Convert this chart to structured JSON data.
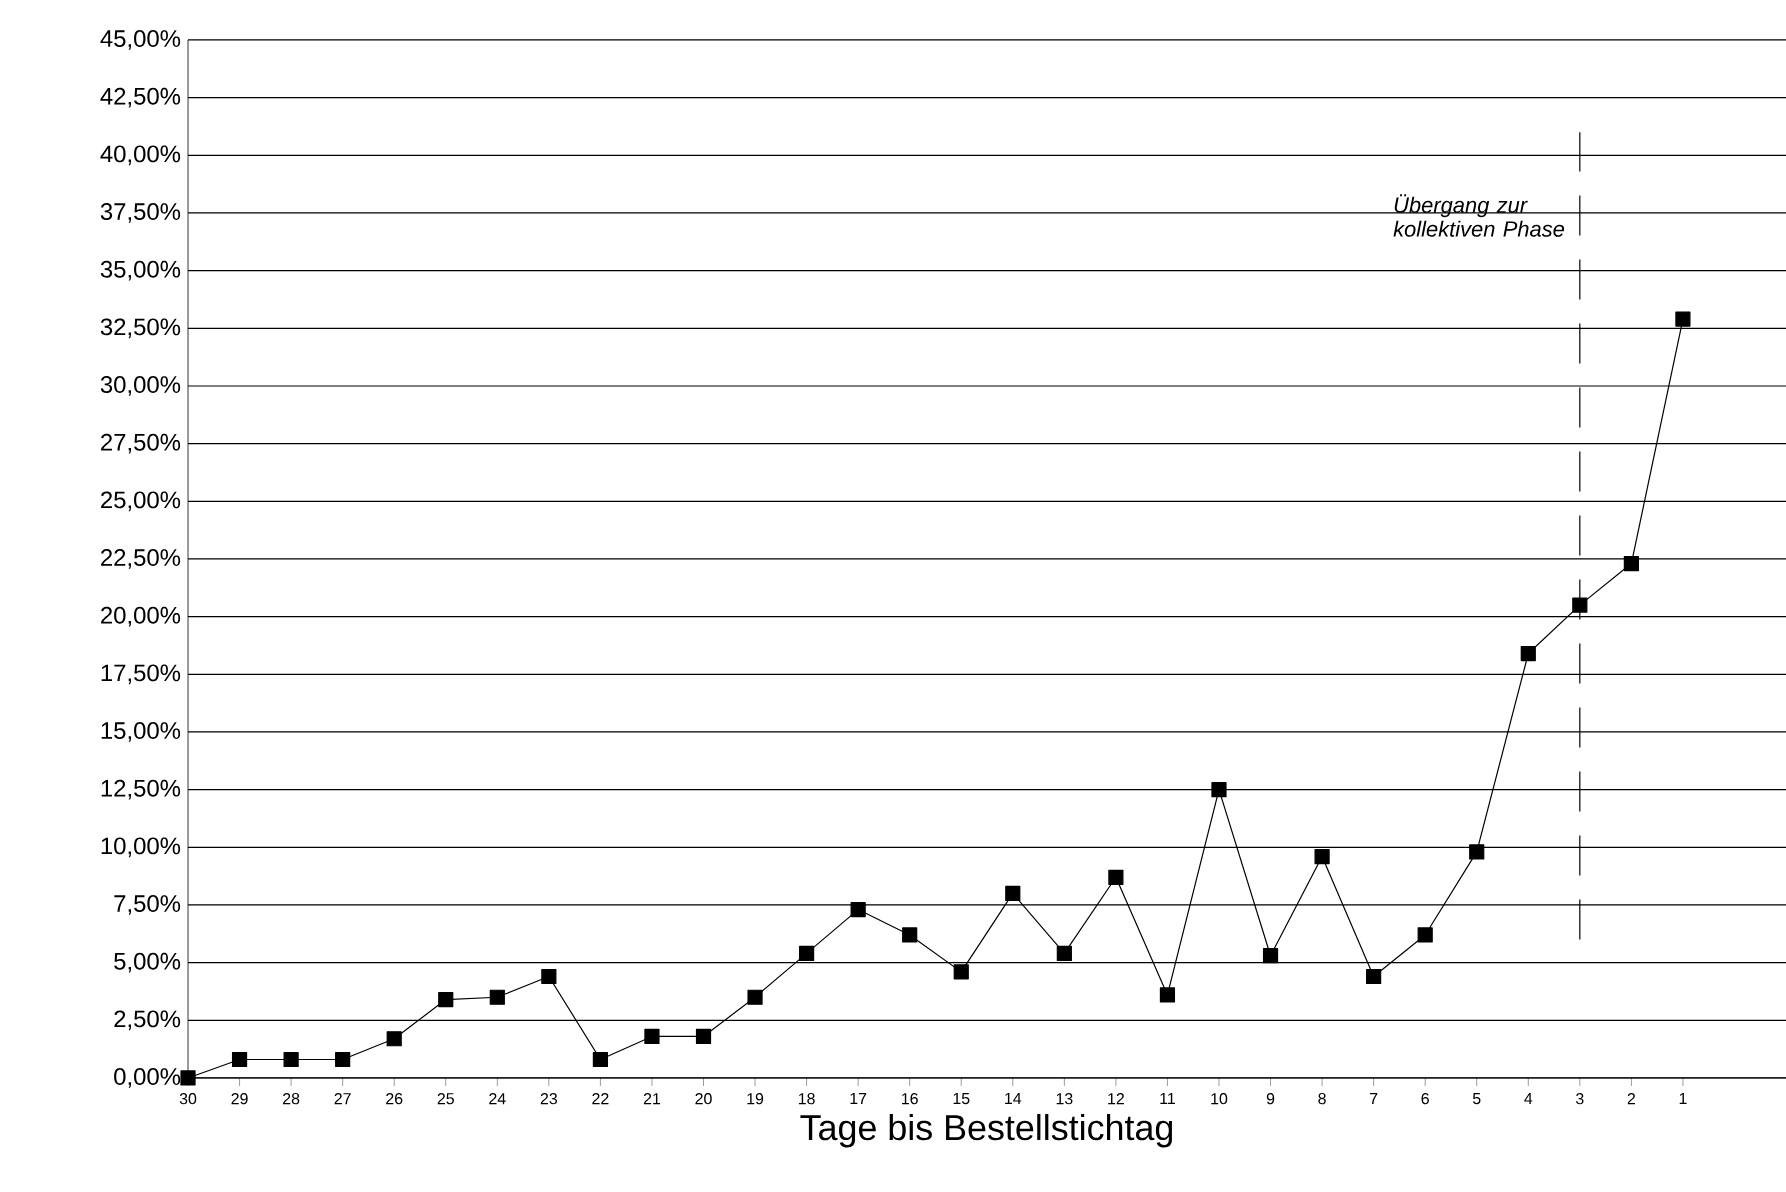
{
  "chart_data": {
    "type": "line",
    "xlabel": "Tage bis Bestellstichtag",
    "categories": [
      "30",
      "29",
      "28",
      "27",
      "26",
      "25",
      "24",
      "23",
      "22",
      "21",
      "20",
      "19",
      "18",
      "17",
      "16",
      "15",
      "14",
      "13",
      "12",
      "11",
      "10",
      "9",
      "8",
      "7",
      "6",
      "5",
      "4",
      "3",
      "2",
      "1"
    ],
    "series": [
      {
        "color": "#000000",
        "values": [
          0,
          0.8,
          0.8,
          0.8,
          1.7,
          3.4,
          3.5,
          4.4,
          0.8,
          1.8,
          1.8,
          3.5,
          5.4,
          7.3,
          6.2,
          4.6,
          8.0,
          5.4,
          8.7,
          3.6,
          12.5,
          5.3,
          9.6,
          4.4,
          6.2,
          9.8,
          18.4,
          20.5,
          22.3,
          32.9
        ]
      }
    ],
    "ylim": [
      0,
      45
    ],
    "yticks": [
      {
        "value": 0,
        "label": "0,00%"
      },
      {
        "value": 2.5,
        "label": "2,50%"
      },
      {
        "value": 5,
        "label": "5,00%"
      },
      {
        "value": 7.5,
        "label": "7,50%"
      },
      {
        "value": 10,
        "label": "10,00%"
      },
      {
        "value": 12.5,
        "label": "12,50%"
      },
      {
        "value": 15,
        "label": "15,00%"
      },
      {
        "value": 17.5,
        "label": "17,50%"
      },
      {
        "value": 20,
        "label": "20,00%"
      },
      {
        "value": 22.5,
        "label": "22,50%"
      },
      {
        "value": 25,
        "label": "25,00%"
      },
      {
        "value": 27.5,
        "label": "27,50%"
      },
      {
        "value": 30,
        "label": "30,00%"
      },
      {
        "value": 32.5,
        "label": "32,50%"
      },
      {
        "value": 35,
        "label": "35,00%"
      },
      {
        "value": 37.5,
        "label": "37,50%"
      },
      {
        "value": 40,
        "label": "40,00%"
      },
      {
        "value": 42.5,
        "label": "42,50%"
      },
      {
        "value": 45,
        "label": "45,00%"
      }
    ],
    "ref_lines": [
      {
        "axis": "x",
        "value": "3",
        "label": "Übergang zur kollektiven Phase",
        "color": "#000000",
        "line_style": "dashed"
      }
    ],
    "grid": "y",
    "marker": "square",
    "line_style": "solid"
  }
}
